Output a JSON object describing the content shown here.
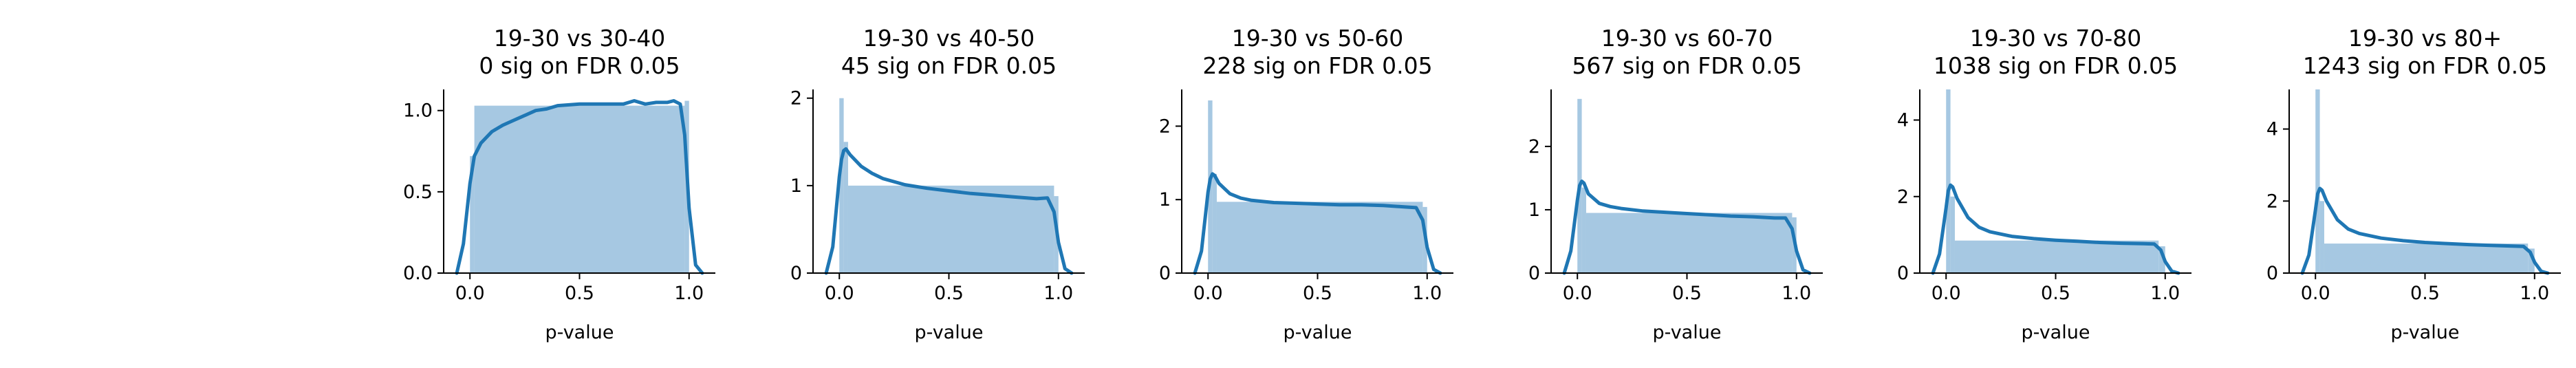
{
  "figure": {
    "background": "#ffffff",
    "hist_color": "#a6c8e2",
    "line_color": "#1f77b4",
    "spine_color": "#000000"
  },
  "chart_data": [
    {
      "type": "area",
      "title": [
        "19-30 vs 30-40",
        "0 sig on FDR 0.05"
      ],
      "xlabel": "p-value",
      "ylabel": "",
      "xlim": [
        -0.12,
        1.12
      ],
      "ylim": [
        0,
        1.13
      ],
      "xticks": [
        0.0,
        0.5,
        1.0
      ],
      "xtick_labels": [
        "0.0",
        "0.5",
        "1.0"
      ],
      "yticks": [
        0.0,
        0.5,
        1.0
      ],
      "ytick_labels": [
        "0.0",
        "0.5",
        "1.0"
      ],
      "histogram": {
        "bin_edges": [
          0.0,
          0.02,
          0.98,
          1.0
        ],
        "heights": [
          0.72,
          1.03,
          1.06
        ]
      },
      "kde": {
        "x": [
          -0.06,
          -0.03,
          0.0,
          0.02,
          0.05,
          0.1,
          0.15,
          0.2,
          0.25,
          0.3,
          0.35,
          0.4,
          0.5,
          0.6,
          0.7,
          0.75,
          0.8,
          0.85,
          0.9,
          0.93,
          0.96,
          0.98,
          1.0,
          1.03,
          1.06
        ],
        "y": [
          0.0,
          0.18,
          0.55,
          0.72,
          0.8,
          0.87,
          0.91,
          0.94,
          0.97,
          1.0,
          1.01,
          1.03,
          1.04,
          1.04,
          1.04,
          1.06,
          1.04,
          1.05,
          1.05,
          1.06,
          1.04,
          0.85,
          0.4,
          0.05,
          0.0
        ]
      }
    },
    {
      "type": "area",
      "title": [
        "19-30 vs 40-50",
        "45 sig on FDR 0.05"
      ],
      "xlabel": "p-value",
      "ylabel": "",
      "xlim": [
        -0.12,
        1.12
      ],
      "ylim": [
        0,
        2.1
      ],
      "xticks": [
        0.0,
        0.5,
        1.0
      ],
      "xtick_labels": [
        "0.0",
        "0.5",
        "1.0"
      ],
      "yticks": [
        0,
        1,
        2
      ],
      "ytick_labels": [
        "0",
        "1",
        "2"
      ],
      "histogram": {
        "bin_edges": [
          0.0,
          0.02,
          0.04,
          0.98,
          1.0
        ],
        "heights": [
          2.0,
          1.5,
          1.0,
          0.88
        ]
      },
      "kde": {
        "x": [
          -0.06,
          -0.03,
          0.0,
          0.01,
          0.02,
          0.03,
          0.05,
          0.1,
          0.15,
          0.2,
          0.3,
          0.4,
          0.5,
          0.6,
          0.7,
          0.8,
          0.9,
          0.95,
          0.98,
          1.0,
          1.03,
          1.06
        ],
        "y": [
          0.0,
          0.3,
          1.1,
          1.3,
          1.4,
          1.42,
          1.35,
          1.22,
          1.14,
          1.08,
          1.01,
          0.97,
          0.94,
          0.91,
          0.89,
          0.87,
          0.85,
          0.86,
          0.7,
          0.35,
          0.05,
          0.0
        ]
      }
    },
    {
      "type": "area",
      "title": [
        "19-30 vs 50-60",
        "228 sig on FDR 0.05"
      ],
      "xlabel": "p-value",
      "ylabel": "",
      "xlim": [
        -0.12,
        1.12
      ],
      "ylim": [
        0,
        2.5
      ],
      "xticks": [
        0.0,
        0.5,
        1.0
      ],
      "xtick_labels": [
        "0.0",
        "0.5",
        "1.0"
      ],
      "yticks": [
        0,
        1,
        2
      ],
      "ytick_labels": [
        "0",
        "1",
        "2"
      ],
      "histogram": {
        "bin_edges": [
          0.0,
          0.02,
          0.04,
          0.98,
          1.0
        ],
        "heights": [
          2.35,
          1.35,
          0.97,
          0.9
        ]
      },
      "kde": {
        "x": [
          -0.06,
          -0.03,
          0.0,
          0.01,
          0.02,
          0.03,
          0.05,
          0.1,
          0.15,
          0.2,
          0.3,
          0.4,
          0.5,
          0.6,
          0.7,
          0.8,
          0.9,
          0.95,
          0.98,
          1.0,
          1.03,
          1.06
        ],
        "y": [
          0.0,
          0.3,
          1.1,
          1.28,
          1.35,
          1.33,
          1.22,
          1.08,
          1.02,
          0.99,
          0.96,
          0.95,
          0.94,
          0.93,
          0.93,
          0.92,
          0.9,
          0.89,
          0.72,
          0.35,
          0.05,
          0.0
        ]
      }
    },
    {
      "type": "area",
      "title": [
        "19-30 vs 60-70",
        "567 sig on FDR 0.05"
      ],
      "xlabel": "p-value",
      "ylabel": "",
      "xlim": [
        -0.12,
        1.12
      ],
      "ylim": [
        0,
        2.9
      ],
      "xticks": [
        0.0,
        0.5,
        1.0
      ],
      "xtick_labels": [
        "0.0",
        "0.5",
        "1.0"
      ],
      "yticks": [
        0,
        1,
        2
      ],
      "ytick_labels": [
        "0",
        "1",
        "2"
      ],
      "histogram": {
        "bin_edges": [
          0.0,
          0.02,
          0.04,
          0.98,
          1.0
        ],
        "heights": [
          2.75,
          1.35,
          0.95,
          0.88
        ]
      },
      "kde": {
        "x": [
          -0.06,
          -0.03,
          0.0,
          0.01,
          0.02,
          0.03,
          0.05,
          0.1,
          0.15,
          0.2,
          0.3,
          0.4,
          0.5,
          0.6,
          0.7,
          0.8,
          0.9,
          0.95,
          0.98,
          1.0,
          1.03,
          1.06
        ],
        "y": [
          0.0,
          0.35,
          1.15,
          1.38,
          1.45,
          1.42,
          1.25,
          1.1,
          1.05,
          1.02,
          0.98,
          0.96,
          0.94,
          0.92,
          0.9,
          0.89,
          0.87,
          0.87,
          0.7,
          0.35,
          0.05,
          0.0
        ]
      }
    },
    {
      "type": "area",
      "title": [
        "19-30 vs 70-80",
        "1038 sig on FDR 0.05"
      ],
      "xlabel": "p-value",
      "ylabel": "",
      "xlim": [
        -0.12,
        1.12
      ],
      "ylim": [
        0,
        4.8
      ],
      "xticks": [
        0.0,
        0.5,
        1.0
      ],
      "xtick_labels": [
        "0.0",
        "0.5",
        "1.0"
      ],
      "yticks": [
        0,
        2,
        4
      ],
      "ytick_labels": [
        "0",
        "2",
        "4"
      ],
      "histogram": {
        "bin_edges": [
          0.0,
          0.02,
          0.04,
          0.97,
          1.0
        ],
        "heights": [
          4.8,
          2.0,
          0.85,
          0.7
        ]
      },
      "kde": {
        "x": [
          -0.06,
          -0.03,
          0.0,
          0.01,
          0.02,
          0.03,
          0.05,
          0.1,
          0.15,
          0.2,
          0.3,
          0.4,
          0.5,
          0.6,
          0.7,
          0.8,
          0.9,
          0.95,
          0.98,
          1.0,
          1.03,
          1.06
        ],
        "y": [
          0.0,
          0.5,
          1.7,
          2.15,
          2.3,
          2.25,
          1.95,
          1.45,
          1.2,
          1.08,
          0.96,
          0.9,
          0.86,
          0.83,
          0.8,
          0.78,
          0.77,
          0.76,
          0.6,
          0.3,
          0.05,
          0.0
        ]
      }
    },
    {
      "type": "area",
      "title": [
        "19-30 vs 80+",
        "1243 sig on FDR 0.05"
      ],
      "xlabel": "p-value",
      "ylabel": "",
      "xlim": [
        -0.12,
        1.12
      ],
      "ylim": [
        0,
        5.1
      ],
      "xticks": [
        0.0,
        0.5,
        1.0
      ],
      "xtick_labels": [
        "0.0",
        "0.5",
        "1.0"
      ],
      "yticks": [
        0,
        2,
        4
      ],
      "ytick_labels": [
        "0",
        "2",
        "4"
      ],
      "histogram": {
        "bin_edges": [
          0.0,
          0.02,
          0.04,
          0.97,
          1.0
        ],
        "heights": [
          5.1,
          2.0,
          0.82,
          0.68
        ]
      },
      "kde": {
        "x": [
          -0.06,
          -0.03,
          0.0,
          0.01,
          0.02,
          0.03,
          0.05,
          0.1,
          0.15,
          0.2,
          0.3,
          0.4,
          0.5,
          0.6,
          0.7,
          0.8,
          0.9,
          0.95,
          0.98,
          1.0,
          1.03,
          1.06
        ],
        "y": [
          0.0,
          0.5,
          1.75,
          2.2,
          2.35,
          2.3,
          2.0,
          1.48,
          1.22,
          1.1,
          0.97,
          0.9,
          0.85,
          0.82,
          0.79,
          0.77,
          0.75,
          0.74,
          0.58,
          0.3,
          0.05,
          0.0
        ]
      }
    }
  ]
}
